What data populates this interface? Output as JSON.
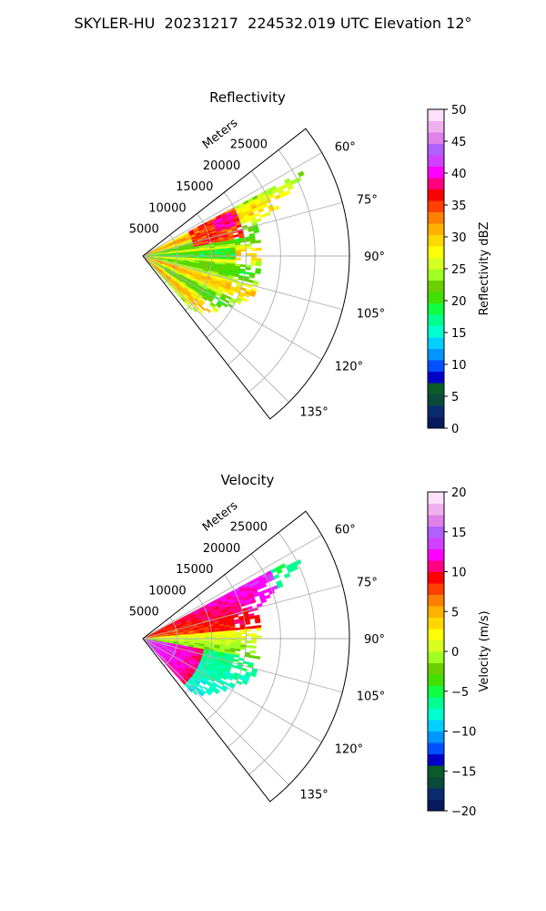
{
  "title": "SKYLER-HU  20231217  224532.019 UTC Elevation 12°",
  "chart_data": [
    {
      "type": "heatmap",
      "subtype": "polar-sector",
      "title": "Reflectivity",
      "range_label": "Meters",
      "range_ticks": [
        "5000",
        "10000",
        "15000",
        "20000",
        "25000"
      ],
      "angle_ticks": [
        "60°",
        "75°",
        "90°",
        "105°",
        "120°",
        "135°"
      ],
      "angle_range": [
        52,
        142
      ],
      "range_max": 30000,
      "colorbar": {
        "label": "Reflectivity dBZ",
        "range": [
          0,
          50
        ],
        "ticks": [
          "0",
          "5",
          "10",
          "15",
          "20",
          "25",
          "30",
          "35",
          "40",
          "45",
          "50"
        ]
      }
    },
    {
      "type": "heatmap",
      "subtype": "polar-sector",
      "title": "Velocity",
      "range_label": "Meters",
      "range_ticks": [
        "5000",
        "10000",
        "15000",
        "20000",
        "25000"
      ],
      "angle_ticks": [
        "60°",
        "75°",
        "90°",
        "105°",
        "120°",
        "135°"
      ],
      "angle_range": [
        52,
        142
      ],
      "range_max": 30000,
      "colorbar": {
        "label": "Velocity (m/s)",
        "range": [
          -20,
          20
        ],
        "ticks": [
          "−20",
          "−15",
          "−10",
          "−5",
          "0",
          "5",
          "10",
          "15",
          "20"
        ]
      }
    }
  ],
  "colors": {
    "colormap": [
      "#071a5e",
      "#0a2a6e",
      "#0a4a3a",
      "#0b5a2a",
      "#0000c8",
      "#0050ff",
      "#0096ff",
      "#00d0ff",
      "#00ffd0",
      "#00ff90",
      "#10ff40",
      "#40e000",
      "#6ad000",
      "#a0ff20",
      "#d8ff20",
      "#ffff00",
      "#ffd800",
      "#ffb000",
      "#ff8000",
      "#ff4000",
      "#ff0000",
      "#ff0080",
      "#ff00ff",
      "#d040ff",
      "#b060ff",
      "#e080e8",
      "#f0b0f0",
      "#fce0fc"
    ],
    "grid": "#b0b0b0"
  }
}
